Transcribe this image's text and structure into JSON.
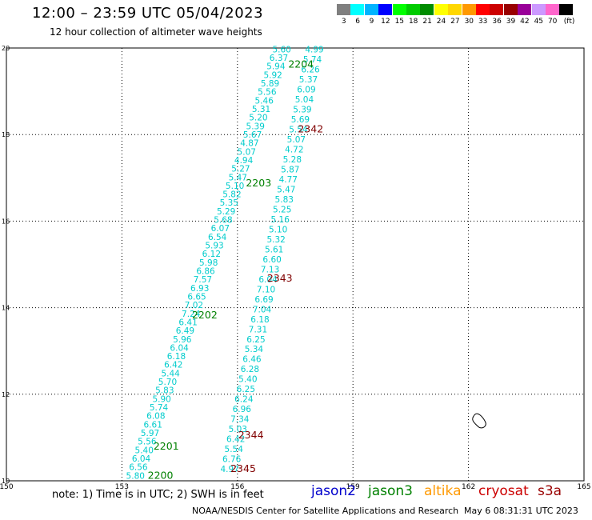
{
  "header": {
    "title": "12:00 – 23:59 UTC 05/04/2023",
    "subtitle": "12 hour collection of altimeter wave heights"
  },
  "legend": {
    "unit": "(ft)",
    "items": [
      {
        "label": "3",
        "color": "#7f7f7f"
      },
      {
        "label": "6",
        "color": "#00ffff"
      },
      {
        "label": "9",
        "color": "#00b4ff"
      },
      {
        "label": "12",
        "color": "#0000ff"
      },
      {
        "label": "15",
        "color": "#00ff00"
      },
      {
        "label": "18",
        "color": "#00cc00"
      },
      {
        "label": "21",
        "color": "#008c00"
      },
      {
        "label": "24",
        "color": "#ffff00"
      },
      {
        "label": "27",
        "color": "#ffd700"
      },
      {
        "label": "30",
        "color": "#ff9900"
      },
      {
        "label": "33",
        "color": "#ff0000"
      },
      {
        "label": "36",
        "color": "#cc0000"
      },
      {
        "label": "39",
        "color": "#990000"
      },
      {
        "label": "42",
        "color": "#990099"
      },
      {
        "label": "45",
        "color": "#cc99ff"
      },
      {
        "label": "70",
        "color": "#ff66cc"
      },
      {
        "label": "",
        "color": "#000000"
      }
    ]
  },
  "axes": {
    "lon_ticks": [
      "150",
      "153",
      "156",
      "159",
      "162",
      "165"
    ],
    "lat_ticks": [
      "10",
      "12",
      "14",
      "16",
      "18",
      "20"
    ]
  },
  "tracks": [
    {
      "id": "2200",
      "color": "#00cccc",
      "label_color": "#008000",
      "start": [
        153.35,
        10.05
      ],
      "end": [
        157.15,
        19.9
      ],
      "label": {
        "text": "2200",
        "pos": [
          154.0,
          10.05
        ]
      },
      "values": [
        "5.80",
        "6.56",
        "6.04",
        "5.40",
        "5.56",
        "5.97",
        "6.61",
        "6.08",
        "5.74",
        "5.90",
        "5.83",
        "5.70",
        "5.44",
        "6.42",
        "6.18",
        "6.04",
        "5.96",
        "6.49",
        "6.41",
        "7.24",
        "7.02",
        "6.65",
        "6.93",
        "7.57",
        "6.86",
        "5.98",
        "6.12",
        "5.93",
        "6.54",
        "6.07",
        "5.68",
        "5.29",
        "5.35",
        "5.82",
        "5.10",
        "5.47",
        "5.27",
        "4.94",
        "5.07",
        "4.87",
        "5.67",
        "5.39",
        "5.20",
        "5.31",
        "5.46",
        "5.56",
        "5.89",
        "5.92",
        "5.94",
        "6.37",
        "5.60"
      ]
    },
    {
      "id": "2204",
      "color": "#00cccc",
      "label_color": "#008000",
      "start": [
        155.8,
        10.2
      ],
      "end": [
        158.0,
        19.9
      ],
      "label": {
        "text": "2204",
        "pos": [
          157.65,
          19.55
        ]
      },
      "values": [
        "4.97",
        "6.76",
        "5.54",
        "6.42",
        "5.03",
        "7.34",
        "6.96",
        "6.24",
        "6.25",
        "5.40",
        "6.28",
        "6.46",
        "5.34",
        "6.25",
        "7.31",
        "6.18",
        "7.04",
        "6.69",
        "7.10",
        "6.04",
        "7.13",
        "6.60",
        "5.61",
        "5.32",
        "5.10",
        "5.16",
        "5.25",
        "5.83",
        "5.47",
        "4.77",
        "5.87",
        "5.28",
        "4.72",
        "5.07",
        "5.54",
        "5.69",
        "5.39",
        "5.04",
        "6.09",
        "5.37",
        "6.26",
        "5.74",
        "4.99"
      ]
    },
    {
      "id": "2201",
      "color": "#00cccc",
      "label_color": "#008000",
      "start": [
        154.15,
        10.72
      ],
      "end": [
        154.15,
        10.72
      ],
      "label": {
        "text": "2201",
        "pos": [
          154.15,
          10.72
        ]
      },
      "values": []
    },
    {
      "id": "2202",
      "color": "#00cccc",
      "label_color": "#008000",
      "start": [
        155.15,
        13.75
      ],
      "end": [
        155.15,
        13.75
      ],
      "label": {
        "text": "2202",
        "pos": [
          155.15,
          13.75
        ]
      },
      "values": []
    },
    {
      "id": "2203",
      "color": "#00cccc",
      "label_color": "#008000",
      "start": [
        156.55,
        16.8
      ],
      "end": [
        156.55,
        16.8
      ],
      "label": {
        "text": "2203",
        "pos": [
          156.55,
          16.8
        ]
      },
      "values": []
    },
    {
      "id": "2342",
      "color": "#00cccc",
      "label_color": "#800000",
      "start": [
        157.9,
        18.05
      ],
      "end": [
        157.9,
        18.05
      ],
      "label": {
        "text": "2342",
        "pos": [
          157.9,
          18.05
        ]
      },
      "values": []
    },
    {
      "id": "2343",
      "color": "#00cccc",
      "label_color": "#800000",
      "start": [
        157.1,
        14.6
      ],
      "end": [
        157.1,
        14.6
      ],
      "label": {
        "text": "2343",
        "pos": [
          157.1,
          14.6
        ]
      },
      "values": []
    },
    {
      "id": "2344",
      "color": "#00cccc",
      "label_color": "#800000",
      "start": [
        156.35,
        10.98
      ],
      "end": [
        156.35,
        10.98
      ],
      "label": {
        "text": "2344",
        "pos": [
          156.35,
          10.98
        ]
      },
      "values": []
    },
    {
      "id": "2345",
      "color": "#00cccc",
      "label_color": "#800000",
      "start": [
        156.15,
        10.2
      ],
      "end": [
        156.15,
        10.2
      ],
      "label": {
        "text": "2345",
        "pos": [
          156.15,
          10.2
        ]
      },
      "values": []
    }
  ],
  "island": {
    "lon": 162.25,
    "lat": 11.4
  },
  "footer": {
    "note": "note:  1) Time is in UTC;  2) SWH is in feet",
    "satellites": [
      {
        "name": "jason2",
        "color": "#0000cc"
      },
      {
        "name": "jason3",
        "color": "#008000"
      },
      {
        "name": "altika",
        "color": "#ff9900"
      },
      {
        "name": "cryosat",
        "color": "#cc0000"
      },
      {
        "name": "s3a",
        "color": "#990000"
      }
    ],
    "credit": "NOAA/NESDIS Center for Satellite Applications and Research",
    "timestamp": "May  6 08:31:31 UTC 2023"
  }
}
